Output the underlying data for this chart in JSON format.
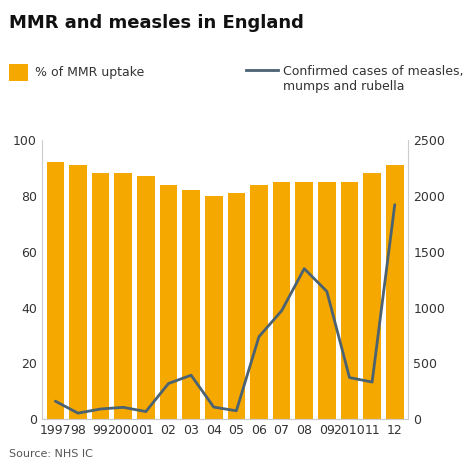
{
  "title": "MMR and measles in England",
  "source": "Source: NHS IC",
  "years": [
    1997,
    1998,
    1999,
    2000,
    2001,
    2002,
    2003,
    2004,
    2005,
    2006,
    2007,
    2008,
    2009,
    2010,
    2011,
    2012
  ],
  "year_labels": [
    "1997",
    "98",
    "99",
    "2000",
    "01",
    "02",
    "03",
    "04",
    "05",
    "06",
    "07",
    "08",
    "09",
    "2010",
    "11",
    "12"
  ],
  "mmr_uptake": [
    92,
    91,
    88,
    88,
    87,
    84,
    82,
    80,
    81,
    84,
    85,
    85,
    85,
    85,
    88,
    91
  ],
  "measles_cases": [
    163,
    56,
    93,
    108,
    70,
    321,
    395,
    110,
    77,
    740,
    971,
    1348,
    1144,
    374,
    334,
    1920
  ],
  "bar_color": "#F5A800",
  "line_color": "#4a6272",
  "bar_legend": "% of MMR uptake",
  "line_legend": "Confirmed cases of measles,\nmumps and rubella",
  "ylim_left": [
    0,
    100
  ],
  "ylim_right": [
    0,
    2500
  ],
  "yticks_left": [
    0,
    20,
    40,
    60,
    80,
    100
  ],
  "yticks_right": [
    0,
    500,
    1000,
    1500,
    2000,
    2500
  ],
  "background_color": "#ffffff",
  "title_fontsize": 13,
  "legend_fontsize": 9,
  "tick_fontsize": 9,
  "source_fontsize": 8
}
